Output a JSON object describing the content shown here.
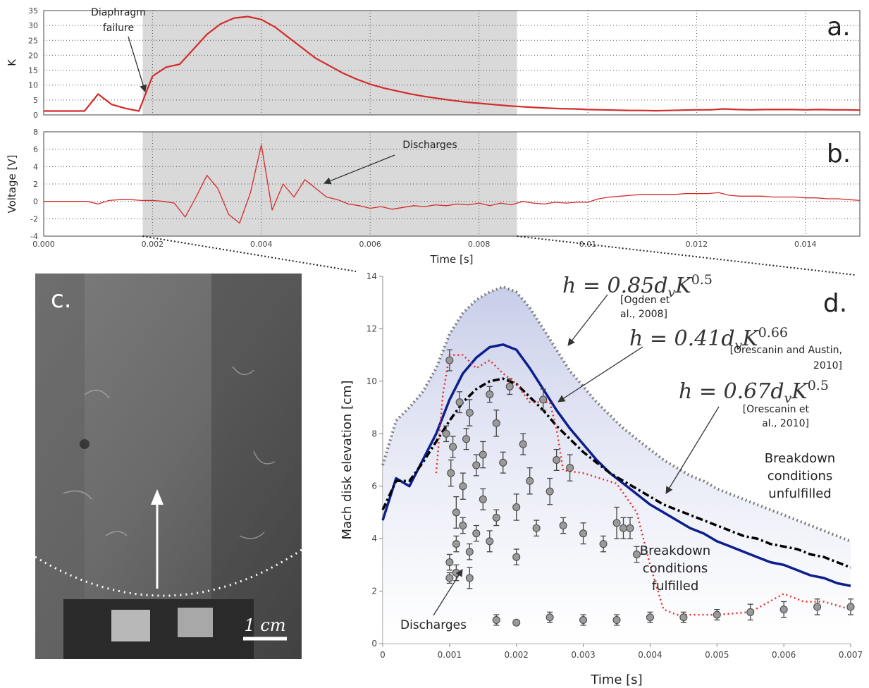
{
  "chart_data": [
    {
      "type": "line",
      "panel_label": "a.",
      "ylabel": "K",
      "xlim": [
        0,
        0.015
      ],
      "xticks": [
        0,
        0.002,
        0.004,
        0.006,
        0.008,
        0.01,
        0.012,
        0.014
      ],
      "ylim": [
        0,
        35
      ],
      "yticks": [
        0,
        5,
        10,
        15,
        20,
        25,
        30,
        35
      ],
      "grid": true,
      "highlight": {
        "xlim": [
          0.00182,
          0.0087
        ],
        "color": "#d9d9d9"
      },
      "series": [
        {
          "color": "#d42a2a",
          "width": 2.2,
          "dash": "solid",
          "x": [
            0,
            0.00025,
            0.0005,
            0.00075,
            0.001,
            0.00125,
            0.0015,
            0.00175,
            0.002,
            0.00225,
            0.0025,
            0.00275,
            0.003,
            0.00325,
            0.0035,
            0.00375,
            0.004,
            0.00425,
            0.0045,
            0.00475,
            0.005,
            0.00525,
            0.0055,
            0.00575,
            0.006,
            0.00625,
            0.0065,
            0.00675,
            0.007,
            0.00725,
            0.0075,
            0.00775,
            0.008,
            0.00825,
            0.0085,
            0.00875,
            0.009,
            0.00925,
            0.0095,
            0.00975,
            0.01,
            0.01025,
            0.0105,
            0.01075,
            0.011,
            0.01125,
            0.0115,
            0.01175,
            0.012,
            0.01225,
            0.0125,
            0.01275,
            0.013,
            0.01325,
            0.0135,
            0.01375,
            0.014,
            0.01425,
            0.0145,
            0.01475,
            0.015
          ],
          "values": [
            1.3,
            1.3,
            1.3,
            1.3,
            7,
            3.5,
            2.2,
            1.3,
            13,
            16,
            17,
            22,
            27,
            30.5,
            32.5,
            33,
            32,
            29.5,
            26,
            22.5,
            19,
            16.5,
            14,
            12,
            10.3,
            9,
            8,
            7,
            6.2,
            5.5,
            4.9,
            4.3,
            3.9,
            3.5,
            3.1,
            2.8,
            2.5,
            2.3,
            2.1,
            2,
            1.8,
            1.7,
            1.6,
            1.5,
            1.5,
            1.4,
            1.5,
            1.6,
            1.7,
            1.7,
            2,
            1.8,
            1.7,
            1.8,
            1.8,
            1.8,
            1.7,
            1.8,
            1.7,
            1.7,
            1.6
          ]
        }
      ],
      "annotations": [
        {
          "lines": [
            "Diaphragm",
            "failure"
          ]
        }
      ]
    },
    {
      "type": "line",
      "panel_label": "b.",
      "ylabel": "Voltage [V]",
      "xlabel": "Time [s]",
      "xlim": [
        0,
        0.015
      ],
      "xticks": [
        {
          "value": 0,
          "label": "0.000"
        },
        0.002,
        0.004,
        0.006,
        0.008,
        0.01,
        0.012,
        0.014
      ],
      "ylim": [
        -4,
        8
      ],
      "yticks": [
        -4,
        -2,
        0,
        2,
        4,
        6,
        8
      ],
      "grid": true,
      "highlight": {
        "xlim": [
          0.00182,
          0.0087
        ],
        "color": "#d9d9d9"
      },
      "series": [
        {
          "color": "#d42a2a",
          "width": 1.3,
          "dash": "solid",
          "x": [
            0,
            0.0002,
            0.0004,
            0.0006,
            0.0008,
            0.001,
            0.0012,
            0.0014,
            0.0016,
            0.0018,
            0.002,
            0.0022,
            0.0024,
            0.0026,
            0.0028,
            0.003,
            0.0032,
            0.0034,
            0.0036,
            0.0038,
            0.004,
            0.0042,
            0.0044,
            0.0046,
            0.0048,
            0.005,
            0.0052,
            0.0054,
            0.0056,
            0.0058,
            0.006,
            0.0062,
            0.0064,
            0.0066,
            0.0068,
            0.007,
            0.0072,
            0.0074,
            0.0076,
            0.0078,
            0.008,
            0.0082,
            0.0084,
            0.0086,
            0.0088,
            0.009,
            0.0092,
            0.0094,
            0.0096,
            0.0098,
            0.01,
            0.0102,
            0.0104,
            0.0106,
            0.0108,
            0.011,
            0.0112,
            0.0114,
            0.0116,
            0.0118,
            0.012,
            0.0122,
            0.0124,
            0.0126,
            0.0128,
            0.013,
            0.0132,
            0.0134,
            0.0136,
            0.0138,
            0.014,
            0.0142,
            0.0144,
            0.0146,
            0.0148,
            0.015
          ],
          "values": [
            0,
            0,
            0,
            0,
            0,
            -0.3,
            0.1,
            0.2,
            0.2,
            0.1,
            0.1,
            0,
            -0.2,
            -1.8,
            0.5,
            3,
            1.5,
            -1.5,
            -2.5,
            1,
            6.5,
            -1,
            2,
            0.5,
            2.5,
            1.5,
            0.5,
            0.2,
            -0.3,
            -0.5,
            -0.8,
            -0.6,
            -0.9,
            -0.7,
            -0.5,
            -0.6,
            -0.4,
            -0.5,
            -0.3,
            -0.4,
            -0.2,
            -0.5,
            -0.2,
            -0.4,
            0,
            -0.2,
            -0.3,
            -0.1,
            -0.2,
            -0.1,
            -0.1,
            0.3,
            0.5,
            0.6,
            0.7,
            0.8,
            0.8,
            0.8,
            0.8,
            0.9,
            0.9,
            0.9,
            1,
            0.7,
            0.6,
            0.6,
            0.6,
            0.5,
            0.5,
            0.5,
            0.4,
            0.4,
            0.3,
            0.3,
            0.2,
            0.1
          ]
        }
      ],
      "annotations": [
        {
          "lines": [
            "Discharges"
          ]
        }
      ]
    },
    {
      "type": "line",
      "panel_label": "d.",
      "ylabel": "Mach disk elevation [cm]",
      "xlabel": "Time [s]",
      "xlim": [
        0,
        0.007
      ],
      "xticks": [
        0,
        0.001,
        0.002,
        0.003,
        0.004,
        0.005,
        0.006,
        0.007
      ],
      "ylim": [
        0,
        14
      ],
      "yticks": [
        0,
        2,
        4,
        6,
        8,
        10,
        12,
        14
      ],
      "grid": false,
      "x": [
        0,
        0.0002,
        0.0004,
        0.0006,
        0.0008,
        0.001,
        0.0012,
        0.0014,
        0.0016,
        0.0018,
        0.002,
        0.0022,
        0.0024,
        0.0026,
        0.0028,
        0.003,
        0.0032,
        0.0034,
        0.0036,
        0.0038,
        0.004,
        0.0042,
        0.0044,
        0.0046,
        0.0048,
        0.005,
        0.0052,
        0.0054,
        0.0056,
        0.0058,
        0.006,
        0.0062,
        0.0064,
        0.0066,
        0.0068,
        0.007
      ],
      "series": [
        {
          "kind": "line",
          "color": "#7a7a7a",
          "width": 4,
          "dash": "dotted",
          "fill_below": "#c5cbe8",
          "values": [
            6.8,
            8.5,
            9,
            9.6,
            10.5,
            11.8,
            12.6,
            13.1,
            13.4,
            13.6,
            13.4,
            12.8,
            12,
            11.2,
            10.4,
            9.8,
            9.2,
            8.7,
            8.2,
            7.8,
            7.4,
            7,
            6.7,
            6.4,
            6.2,
            5.9,
            5.7,
            5.5,
            5.3,
            5.1,
            4.9,
            4.7,
            4.5,
            4.3,
            4.1,
            3.9
          ]
        },
        {
          "kind": "line",
          "color": "#0d1f8c",
          "width": 3.5,
          "dash": "solid",
          "values": [
            4.7,
            6.3,
            6,
            7,
            8,
            9.3,
            10.3,
            10.9,
            11.3,
            11.4,
            11.2,
            10.5,
            9.7,
            8.9,
            8.2,
            7.6,
            7,
            6.5,
            6.1,
            5.7,
            5.3,
            5,
            4.7,
            4.4,
            4.2,
            3.9,
            3.7,
            3.5,
            3.3,
            3.1,
            3,
            2.8,
            2.6,
            2.5,
            2.3,
            2.2
          ]
        },
        {
          "kind": "line",
          "color": "#000000",
          "width": 3.5,
          "dash": "dashdot",
          "values": [
            5.1,
            6.2,
            6.2,
            6.9,
            7.7,
            8.5,
            9.2,
            9.7,
            10,
            10.1,
            9.9,
            9.4,
            8.9,
            8.3,
            7.8,
            7.3,
            6.9,
            6.5,
            6.2,
            5.9,
            5.6,
            5.3,
            5.1,
            4.9,
            4.7,
            4.5,
            4.3,
            4.1,
            4,
            3.8,
            3.7,
            3.6,
            3.4,
            3.3,
            3.1,
            2.9
          ]
        },
        {
          "kind": "line",
          "color": "#e8302a",
          "width": 2.5,
          "dash": "dotted",
          "x": [
            0.0008,
            0.0009,
            0.001,
            0.0012,
            0.0014,
            0.0016,
            0.0018,
            0.002,
            0.0022,
            0.0025,
            0.0026,
            0.0027,
            0.003,
            0.0035,
            0.0038,
            0.004,
            0.0042,
            0.0044,
            0.005,
            0.0055,
            0.006,
            0.0063,
            0.0066,
            0.007
          ],
          "values": [
            6.5,
            9.5,
            11,
            11,
            10.5,
            10.8,
            10.3,
            9.9,
            9.2,
            9.2,
            8.2,
            6.6,
            6.5,
            6.1,
            5,
            3,
            1.3,
            1.1,
            1.1,
            1.2,
            1.9,
            1.6,
            1.6,
            1.3
          ]
        },
        {
          "kind": "scatter",
          "color": "#9a9a9a",
          "x": [
            0.00095,
            0.001,
            0.001,
            0.00102,
            0.00105,
            0.0011,
            0.0011,
            0.00115,
            0.0012,
            0.0012,
            0.00125,
            0.0013,
            0.0013,
            0.0014,
            0.0014,
            0.0015,
            0.0015,
            0.0016,
            0.0016,
            0.0017,
            0.0017,
            0.0018,
            0.0019,
            0.002,
            0.002,
            0.0021,
            0.0022,
            0.0023,
            0.0024,
            0.0025,
            0.0026,
            0.0027,
            0.0028,
            0.003,
            0.0033,
            0.0035,
            0.0036,
            0.0037,
            0.0038,
            0.001,
            0.0011,
            0.0013,
            0.0017,
            0.002,
            0.0025,
            0.003,
            0.0035,
            0.004,
            0.0045,
            0.005,
            0.0055,
            0.006,
            0.0065,
            0.007
          ],
          "values": [
            8,
            10.8,
            2.5,
            6.5,
            7.5,
            5,
            3.8,
            9.2,
            6,
            4.5,
            7.8,
            8.8,
            3.5,
            6.8,
            4.2,
            7.2,
            5.5,
            9.5,
            3.9,
            8.4,
            4.8,
            6.9,
            9.8,
            5.2,
            3.3,
            7.6,
            6.2,
            4.4,
            9.3,
            5.8,
            7,
            4.5,
            6.7,
            4.2,
            3.8,
            4.6,
            4.4,
            4.4,
            3.4,
            3.1,
            2.7,
            2.5,
            0.9,
            0.8,
            1,
            0.9,
            0.9,
            1,
            1,
            1.1,
            1.2,
            1.3,
            1.4,
            1.4
          ],
          "errors": [
            0.3,
            0.4,
            0.2,
            0.5,
            0.4,
            0.6,
            0.3,
            0.4,
            0.5,
            0.3,
            0.4,
            0.5,
            0.3,
            0.4,
            0.3,
            0.5,
            0.4,
            0.3,
            0.4,
            0.5,
            0.3,
            0.4,
            0.3,
            0.5,
            0.3,
            0.4,
            0.5,
            0.3,
            0.4,
            0.5,
            0.4,
            0.3,
            0.5,
            0.4,
            0.3,
            0.6,
            0.4,
            0.4,
            0.3,
            0.3,
            0.3,
            0.4,
            0.2,
            0.1,
            0.2,
            0.2,
            0.2,
            0.2,
            0.2,
            0.2,
            0.3,
            0.3,
            0.3,
            0.3
          ]
        }
      ],
      "annotations": [
        {
          "formula": {
            "main": "h = 0.85d",
            "sub": "v",
            "base": "K",
            "sup": "0.5"
          }
        },
        {
          "lines": [
            "[Ogden et",
            "al., 2008]"
          ]
        },
        {
          "formula": {
            "main": "h = 0.41d",
            "sub": "v",
            "base": "K",
            "sup": "0.66"
          }
        },
        {
          "lines": [
            "[Orescanin and Austin,",
            "2010]"
          ]
        },
        {
          "formula": {
            "main": "h = 0.67d",
            "sub": "v",
            "base": "K",
            "sup": "0.5"
          }
        },
        {
          "lines": [
            "[Orescanin et",
            "al., 2010]"
          ]
        },
        {
          "lines": [
            "Breakdown",
            "conditions",
            "unfulfilled"
          ]
        },
        {
          "lines": [
            "Breakdown",
            "conditions",
            "fulfilled"
          ]
        },
        {
          "lines": [
            "Discharges"
          ]
        }
      ]
    }
  ],
  "image_panel": {
    "panel_label": "c.",
    "scale_label": "1 cm"
  }
}
